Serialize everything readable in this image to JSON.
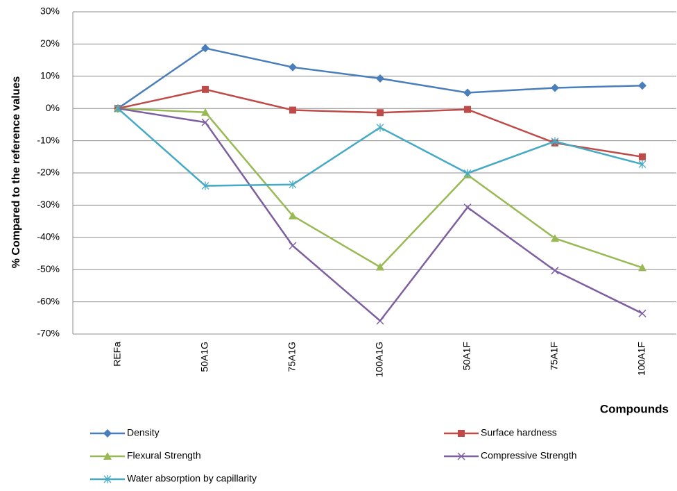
{
  "chart_data": {
    "type": "line",
    "y_label": "% Compared to the reference values",
    "x_label": "Compounds",
    "categories": [
      "REFa",
      "50A1G",
      "75A1G",
      "100A1G",
      "50A1F",
      "75A1F",
      "100A1F"
    ],
    "series": [
      {
        "name": "Density",
        "color": "#4a7ebb",
        "marker": "diamond",
        "values": [
          0,
          18.7,
          12.8,
          9.3,
          4.9,
          6.4,
          7.1
        ]
      },
      {
        "name": "Surface hardness",
        "color": "#be4b48",
        "marker": "square",
        "values": [
          0,
          5.9,
          -0.5,
          -1.3,
          -0.3,
          -10.7,
          -15
        ]
      },
      {
        "name": "Flexural Strength",
        "color": "#98b954",
        "marker": "triangle",
        "values": [
          0,
          -1.2,
          -33.3,
          -49.2,
          -20.6,
          -40.3,
          -49.4
        ]
      },
      {
        "name": "Compressive Strength",
        "color": "#7d5fa0",
        "marker": "x",
        "values": [
          0,
          -4.3,
          -42.6,
          -65.9,
          -30.7,
          -50.3,
          -63.6
        ]
      },
      {
        "name": "Water absorption by capillarity",
        "color": "#46aac5",
        "marker": "star",
        "values": [
          0,
          -24,
          -23.6,
          -5.9,
          -20.1,
          -10.2,
          -17.3
        ]
      }
    ],
    "ylim": [
      -70,
      30
    ],
    "yticks": [
      {
        "value": -70,
        "label": "-70%"
      },
      {
        "value": -60,
        "label": "-60%"
      },
      {
        "value": -50,
        "label": "-50%"
      },
      {
        "value": -40,
        "label": "-40%"
      },
      {
        "value": -30,
        "label": "-30%"
      },
      {
        "value": -20,
        "label": "-20%"
      },
      {
        "value": -10,
        "label": "-10%"
      },
      {
        "value": 0,
        "label": "0%"
      },
      {
        "value": 10,
        "label": "10%"
      },
      {
        "value": 20,
        "label": "20%"
      },
      {
        "value": 30,
        "label": "30%"
      }
    ],
    "grid": true
  }
}
